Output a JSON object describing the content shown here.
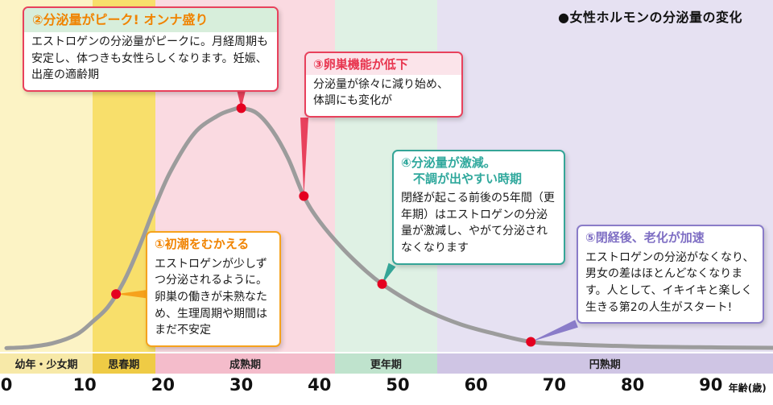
{
  "header": {
    "title": "●女性ホルモンの分泌量の変化"
  },
  "chart_data": {
    "type": "line",
    "title": "女性ホルモンの分泌量の変化",
    "x_unit": "年齢(歳)",
    "x_ticks": [
      0,
      10,
      20,
      30,
      40,
      50,
      60,
      70,
      80,
      90
    ],
    "x_range": [
      0,
      98
    ],
    "y_range": [
      0,
      100
    ],
    "grid": false,
    "curve_color": "#9C9C9C",
    "dot_color": "#E50020",
    "curve": [
      [
        0,
        1.5
      ],
      [
        3,
        2
      ],
      [
        6,
        3.5
      ],
      [
        9,
        7
      ],
      [
        11,
        12
      ],
      [
        13,
        18
      ],
      [
        15,
        28
      ],
      [
        17,
        42
      ],
      [
        19,
        58
      ],
      [
        21,
        72
      ],
      [
        24,
        87
      ],
      [
        27,
        94
      ],
      [
        29,
        96.5
      ],
      [
        30,
        97
      ],
      [
        32,
        95
      ],
      [
        34,
        88
      ],
      [
        36,
        77
      ],
      [
        38,
        62
      ],
      [
        40,
        52
      ],
      [
        43,
        41
      ],
      [
        46,
        32
      ],
      [
        48,
        27
      ],
      [
        51,
        21
      ],
      [
        54,
        16
      ],
      [
        58,
        11
      ],
      [
        62,
        7.5
      ],
      [
        67,
        4
      ],
      [
        72,
        3
      ],
      [
        80,
        2.2
      ],
      [
        90,
        1.8
      ],
      [
        98,
        1.6
      ]
    ],
    "stages": [
      {
        "label": "幼年・少女期",
        "start_age": 0,
        "end_age": 11,
        "band_color": "#FCF3C5",
        "strip_color": "#F7E9A8"
      },
      {
        "label": "思春期",
        "start_age": 11,
        "end_age": 19,
        "band_color": "#F8DF6B",
        "strip_color": "#EFCB45"
      },
      {
        "label": "成熟期",
        "start_age": 19,
        "end_age": 42,
        "band_color": "#FADAE1",
        "strip_color": "#F4BCCB"
      },
      {
        "label": "更年期",
        "start_age": 42,
        "end_age": 55,
        "band_color": "#DFF1E4",
        "strip_color": "#BFE3CD"
      },
      {
        "label": "円熟期",
        "start_age": 55,
        "end_age": 98,
        "band_color": "#E6E1F2",
        "strip_color": "#CFC5E4"
      }
    ],
    "annotations": [
      {
        "id": 1,
        "title": "①初潮をむかえる",
        "body": "エストロゲンが少しずつ分泌されるように。卵巣の働きが未熟なため、生理周期や期間はまだ不安定",
        "accent": "#F6A21C",
        "title_color": "#F08300",
        "anchor_age": 14,
        "anchor_value": 23
      },
      {
        "id": 2,
        "title": "②分泌量がピーク! オンナ盛り",
        "body": "エストロゲンの分泌量がピークに。月経周期も安定し、体つきも女性らしくなります。妊娠、出産の適齢期",
        "accent": "#E8415C",
        "title_color": "#F08300",
        "title_bg": "#D7EEDB",
        "anchor_age": 30,
        "anchor_value": 97
      },
      {
        "id": 3,
        "title": "③卵巣機能が低下",
        "body": "分泌量が徐々に減り始め、体調にも変化が",
        "accent": "#E8415C",
        "title_color": "#E8354F",
        "title_bg": "#FBE4EA",
        "anchor_age": 38,
        "anchor_value": 62
      },
      {
        "id": 4,
        "title": "④分泌量が激減。\n　不調が出やすい時期",
        "body": "閉経が起こる前後の5年間（更年期）はエストロゲンの分泌量が激減し、やがて分泌されなくなります",
        "accent": "#35A597",
        "title_color": "#2FA89C",
        "anchor_age": 48,
        "anchor_value": 27
      },
      {
        "id": 5,
        "title": "⑤閉経後、老化が加速",
        "body": "エストロゲンの分泌がなくなり、男女の差はほとんどなくなります。人として、イキイキと楽しく生きる第2の人生がスタート!",
        "accent": "#8A7CC9",
        "title_color": "#7F6FC4",
        "anchor_age": 67,
        "anchor_value": 4
      }
    ]
  }
}
